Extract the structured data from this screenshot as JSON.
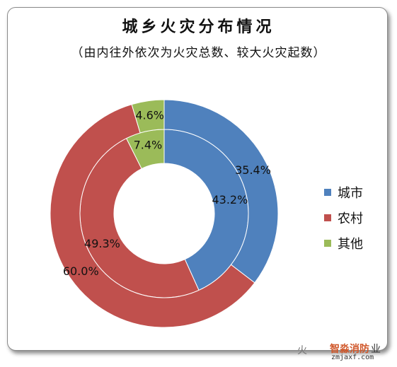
{
  "chart_data": {
    "type": "pie",
    "title": "城乡火灾分布情况",
    "subtitle": "（由内往外依次为火灾总数、较大火灾起数）",
    "categories": [
      "城市",
      "农村",
      "其他"
    ],
    "colors": [
      "#4f81bd",
      "#c0504d",
      "#9bbb59"
    ],
    "series": [
      {
        "values": [
          43.2,
          49.3,
          7.4
        ],
        "labels": [
          "43.2%",
          "49.3%",
          "7.4%"
        ]
      },
      {
        "values": [
          35.4,
          60.0,
          4.6
        ],
        "labels": [
          "35.4%",
          "60.0%",
          "4.6%"
        ]
      }
    ],
    "legend": "right"
  },
  "watermark": {
    "logo": "火",
    "name": "智淼消防",
    "suffix": "业",
    "url": "zmjaxf.com"
  }
}
